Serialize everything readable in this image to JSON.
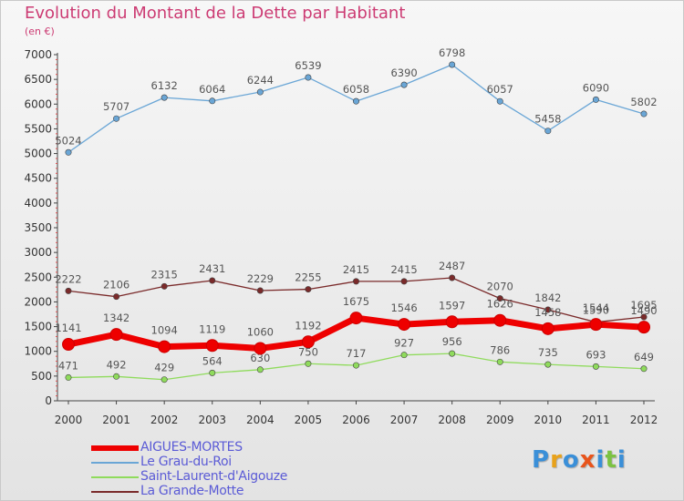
{
  "title": "Evolution du Montant de la Dette par Habitant",
  "subtitle": "(en €)",
  "logo_text": "Proxiti",
  "chart_data": {
    "type": "line",
    "x": [
      "2000",
      "2001",
      "2002",
      "2003",
      "2004",
      "2005",
      "2006",
      "2007",
      "2008",
      "2009",
      "2010",
      "2011",
      "2012"
    ],
    "ylim": [
      0,
      7000
    ],
    "yticks": [
      0,
      500,
      1000,
      1500,
      2000,
      2500,
      3000,
      3500,
      4000,
      4500,
      5000,
      5500,
      6000,
      6500,
      7000
    ],
    "grid": false,
    "legend_position": "bottom-left",
    "series": [
      {
        "name": "La Grande-Motte",
        "color": "#7a2a2a",
        "values": [
          2222,
          2106,
          2315,
          2431,
          2229,
          2255,
          2415,
          2415,
          2487,
          2070,
          1842,
          1590,
          1695
        ]
      },
      {
        "name": "Saint-Laurent-d'Aigouze",
        "color": "#8fdb5c",
        "values": [
          471,
          492,
          429,
          564,
          630,
          750,
          717,
          927,
          956,
          786,
          735,
          693,
          649
        ]
      },
      {
        "name": "Le Grau-du-Roi",
        "color": "#6aa6d6",
        "values": [
          5024,
          5707,
          6132,
          6064,
          6244,
          6539,
          6058,
          6390,
          6798,
          6057,
          5458,
          6090,
          5802
        ]
      },
      {
        "name": "AIGUES-MORTES",
        "color": "#ee0000",
        "values": [
          1141,
          1342,
          1094,
          1119,
          1060,
          1192,
          1675,
          1546,
          1597,
          1626,
          1458,
          1544,
          1490
        ]
      }
    ]
  },
  "legend": [
    {
      "label": "AIGUES-MORTES",
      "color": "#ee0000"
    },
    {
      "label": "Le Grau-du-Roi",
      "color": "#6aa6d6"
    },
    {
      "label": "Saint-Laurent-d'Aigouze",
      "color": "#8fdb5c"
    },
    {
      "label": "La Grande-Motte",
      "color": "#7a2a2a"
    }
  ]
}
